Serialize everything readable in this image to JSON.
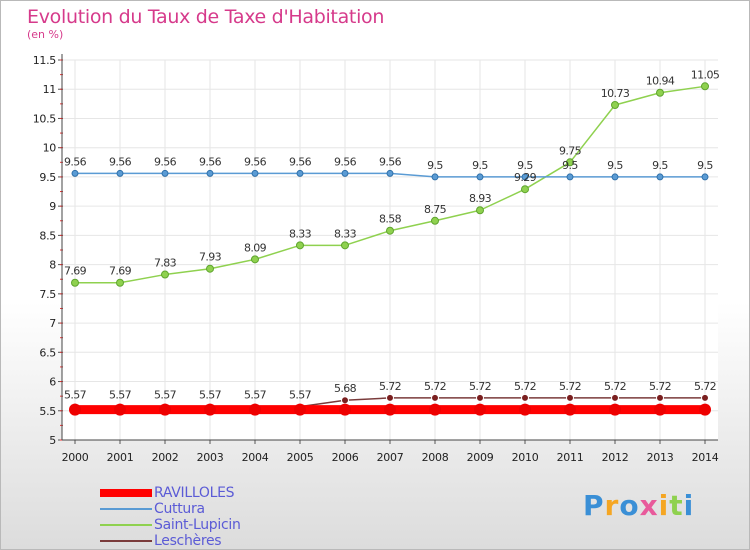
{
  "title": "Evolution du Taux de Taxe d'Habitation",
  "subtitle": "(en %)",
  "logo": "Proxiti",
  "chart_data": {
    "type": "line",
    "x": [
      "2000",
      "2001",
      "2002",
      "2003",
      "2004",
      "2005",
      "2006",
      "2007",
      "2008",
      "2009",
      "2010",
      "2011",
      "2012",
      "2013",
      "2014"
    ],
    "ylim": [
      5,
      11.5
    ],
    "yticks": [
      "5",
      "5.5",
      "6",
      "6.5",
      "7",
      "7.5",
      "8",
      "8.5",
      "9",
      "9.5",
      "10",
      "10.5",
      "11",
      "11.5"
    ],
    "grid": true,
    "legend": "bottom-left",
    "series": [
      {
        "name": "RAVILLOLES",
        "color": "#ff0000",
        "values": [
          5.52,
          5.52,
          5.52,
          5.52,
          5.52,
          5.52,
          5.52,
          5.52,
          5.52,
          5.52,
          5.52,
          5.52,
          5.52,
          5.52,
          5.52
        ]
      },
      {
        "name": "Cuttura",
        "color": "#5a9bd4",
        "values": [
          9.56,
          9.56,
          9.56,
          9.56,
          9.56,
          9.56,
          9.56,
          9.56,
          9.5,
          9.5,
          9.5,
          9.5,
          9.5,
          9.5,
          9.5
        ],
        "labels": [
          "9.56",
          "9.56",
          "9.56",
          "9.56",
          "9.56",
          "9.56",
          "9.56",
          "9.56",
          "9.5",
          "9.5",
          "9.5",
          "9.5",
          "9.5",
          "9.5",
          "9.5"
        ]
      },
      {
        "name": "Saint-Lupicin",
        "color": "#8fd14f",
        "values": [
          7.69,
          7.69,
          7.83,
          7.93,
          8.09,
          8.33,
          8.33,
          8.58,
          8.75,
          8.93,
          9.29,
          9.75,
          10.73,
          10.94,
          11.05
        ],
        "labels": [
          "7.69",
          "7.69",
          "7.83",
          "7.93",
          "8.09",
          "8.33",
          "8.33",
          "8.58",
          "8.75",
          "8.93",
          "9.29",
          "9.75",
          "10.73",
          "10.94",
          "11.05"
        ]
      },
      {
        "name": "Leschères",
        "color": "#7a3b3b",
        "values": [
          5.57,
          5.57,
          5.57,
          5.57,
          5.57,
          5.57,
          5.68,
          5.72,
          5.72,
          5.72,
          5.72,
          5.72,
          5.72,
          5.72,
          5.72
        ],
        "labels": [
          "5.57",
          "5.57",
          "5.57",
          "5.57",
          "5.57",
          "5.57",
          "5.68",
          "5.72",
          "5.72",
          "5.72",
          "5.72",
          "5.72",
          "5.72",
          "5.72",
          "5.72"
        ]
      }
    ]
  }
}
